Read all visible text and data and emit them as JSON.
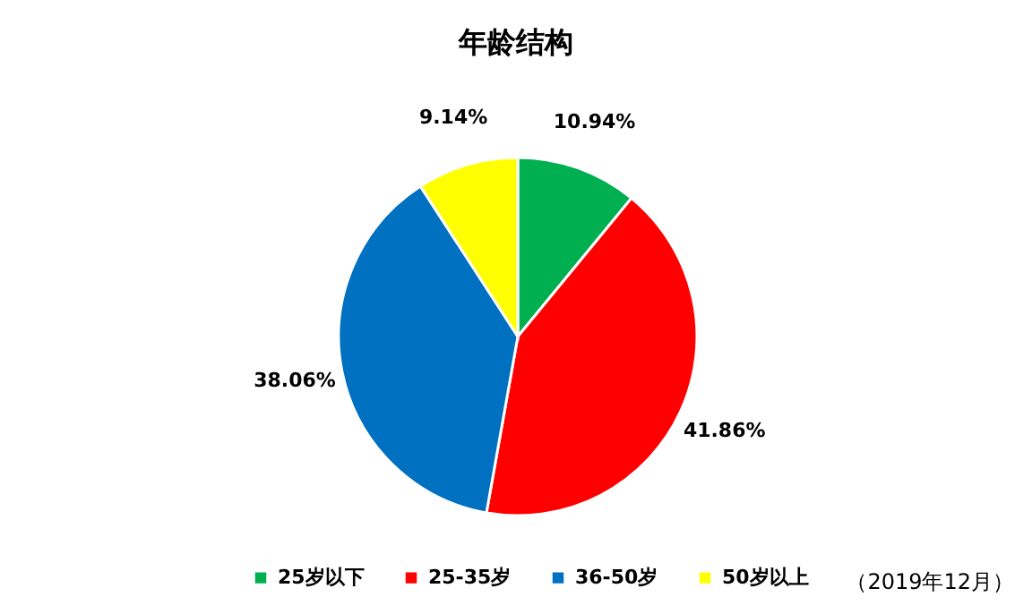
{
  "chart_data": {
    "type": "pie",
    "title": "年龄结构",
    "categories": [
      "25岁以下",
      "25-35岁",
      "36-50岁",
      "50岁以上"
    ],
    "values": [
      10.94,
      41.86,
      38.06,
      9.14
    ],
    "colors": [
      "#00b050",
      "#ff0000",
      "#0070c0",
      "#ffff00"
    ],
    "value_labels": [
      "10.94%",
      "41.86%",
      "38.06%",
      "9.14%"
    ],
    "legend": "bottom",
    "annotations": [
      "（2019年12月）"
    ]
  }
}
